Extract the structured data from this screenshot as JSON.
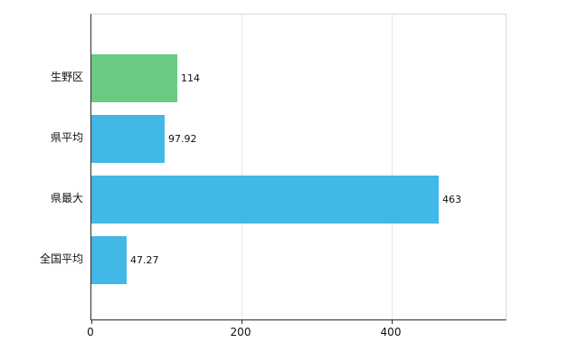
{
  "chart_data": {
    "type": "bar",
    "orientation": "horizontal",
    "title": "",
    "xlabel": "",
    "ylabel": "",
    "categories": [
      "生野区",
      "県平均",
      "県最大",
      "全国平均"
    ],
    "values": [
      114,
      97.92,
      463,
      47.27
    ],
    "value_labels": [
      "114",
      "97.92",
      "463",
      "47.27"
    ],
    "bar_colors": [
      "#68ca83",
      "#41b8e6",
      "#41b8e6",
      "#41b8e6"
    ],
    "x_ticks": [
      0,
      200,
      400
    ],
    "x_tick_labels": [
      "0",
      "200",
      "400"
    ],
    "xlim": [
      0,
      552
    ],
    "grid": true,
    "legend": false,
    "grid_color": "#e4e4e4",
    "axis_color": "#2b2b2b",
    "background_color": "#ffffff"
  }
}
